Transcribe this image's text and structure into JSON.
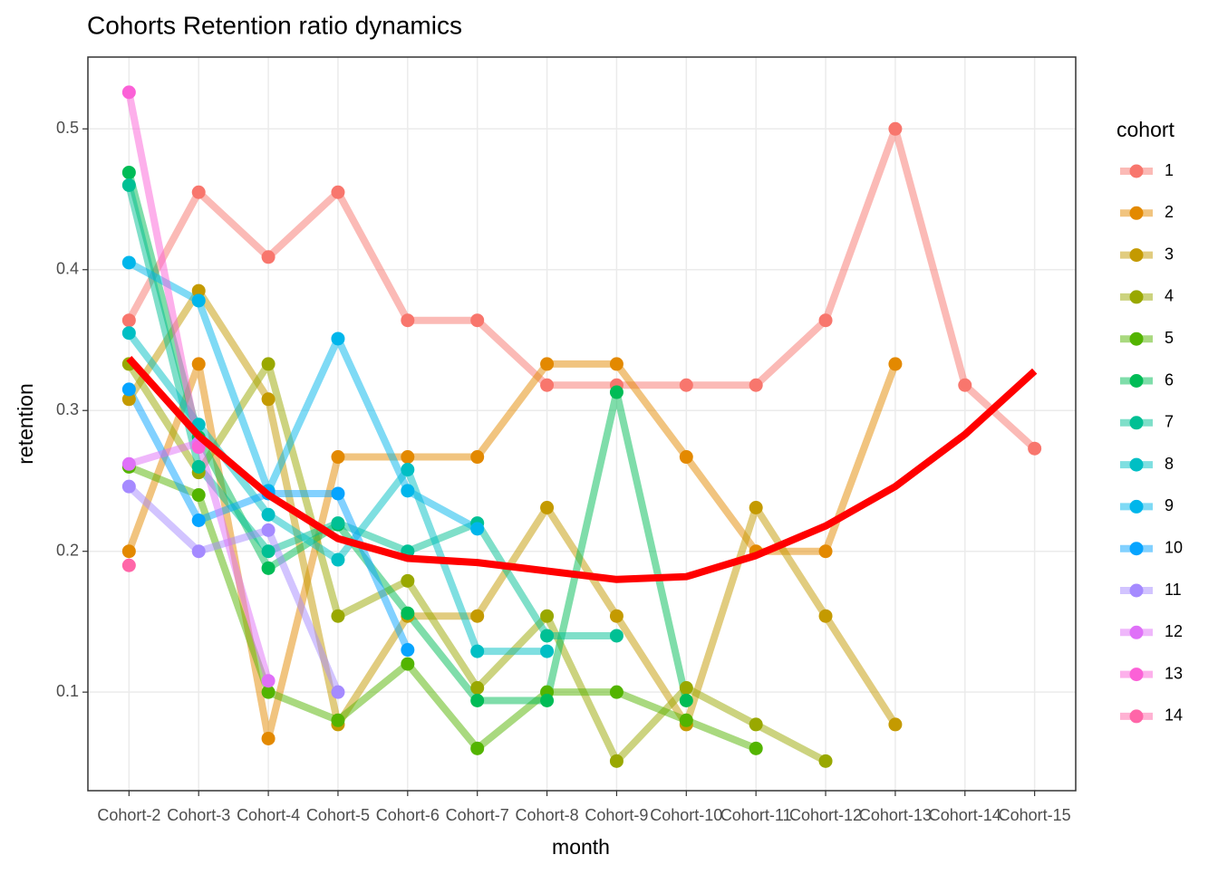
{
  "chart_data": {
    "type": "line",
    "title": "Cohorts Retention ratio dynamics",
    "x_label": "month",
    "y_label": "retention",
    "legend_title": "cohort",
    "categories": [
      "Cohort-2",
      "Cohort-3",
      "Cohort-4",
      "Cohort-5",
      "Cohort-6",
      "Cohort-7",
      "Cohort-8",
      "Cohort-9",
      "Cohort-10",
      "Cohort-11",
      "Cohort-12",
      "Cohort-13",
      "Cohort-14",
      "Cohort-15"
    ],
    "ylim": [
      0.03,
      0.551
    ],
    "yticks": [
      0.1,
      0.2,
      0.3,
      0.4,
      0.5
    ],
    "grid": true,
    "legend": "right",
    "series": [
      {
        "name": "1",
        "color": "#F8766D",
        "values": [
          0.364,
          0.455,
          0.409,
          0.455,
          0.364,
          0.364,
          0.318,
          0.318,
          0.318,
          0.318,
          0.364,
          0.5,
          0.318,
          0.273
        ]
      },
      {
        "name": "2",
        "color": "#E38900",
        "values": [
          0.2,
          0.333,
          0.067,
          0.267,
          0.267,
          0.267,
          0.333,
          0.333,
          0.267,
          0.2,
          0.2,
          0.333,
          null,
          null
        ]
      },
      {
        "name": "3",
        "color": "#C49A00",
        "values": [
          0.308,
          0.385,
          0.308,
          0.077,
          0.154,
          0.154,
          0.231,
          0.154,
          0.077,
          0.231,
          0.154,
          0.077,
          null,
          null
        ]
      },
      {
        "name": "4",
        "color": "#99A800",
        "values": [
          0.333,
          0.256,
          0.333,
          0.154,
          0.179,
          0.103,
          0.154,
          0.051,
          0.103,
          0.077,
          0.051,
          null,
          null,
          null
        ]
      },
      {
        "name": "5",
        "color": "#53B400",
        "values": [
          0.26,
          0.24,
          0.1,
          0.08,
          0.12,
          0.06,
          0.1,
          0.1,
          0.08,
          0.06,
          null,
          null,
          null,
          null
        ]
      },
      {
        "name": "6",
        "color": "#00BC56",
        "values": [
          0.469,
          0.281,
          0.188,
          0.219,
          0.156,
          0.094,
          0.094,
          0.313,
          0.094,
          null,
          null,
          null,
          null,
          null
        ]
      },
      {
        "name": "7",
        "color": "#00C094",
        "values": [
          0.46,
          0.26,
          0.2,
          0.22,
          0.2,
          0.22,
          0.14,
          0.14,
          null,
          null,
          null,
          null,
          null,
          null
        ]
      },
      {
        "name": "8",
        "color": "#00BFC4",
        "values": [
          0.355,
          0.29,
          0.226,
          0.194,
          0.258,
          0.129,
          0.129,
          null,
          null,
          null,
          null,
          null,
          null,
          null
        ]
      },
      {
        "name": "9",
        "color": "#00B6EB",
        "values": [
          0.405,
          0.378,
          0.243,
          0.351,
          0.243,
          0.216,
          null,
          null,
          null,
          null,
          null,
          null,
          null,
          null
        ]
      },
      {
        "name": "10",
        "color": "#06A4FF",
        "values": [
          0.315,
          0.222,
          0.241,
          0.241,
          0.13,
          null,
          null,
          null,
          null,
          null,
          null,
          null,
          null,
          null
        ]
      },
      {
        "name": "11",
        "color": "#A58AFF",
        "values": [
          0.246,
          0.2,
          0.215,
          0.1,
          null,
          null,
          null,
          null,
          null,
          null,
          null,
          null,
          null,
          null
        ]
      },
      {
        "name": "12",
        "color": "#DF70F8",
        "values": [
          0.262,
          0.277,
          0.108,
          null,
          null,
          null,
          null,
          null,
          null,
          null,
          null,
          null,
          null,
          null
        ]
      },
      {
        "name": "13",
        "color": "#FB61D7",
        "values": [
          0.526,
          0.274,
          null,
          null,
          null,
          null,
          null,
          null,
          null,
          null,
          null,
          null,
          null,
          null
        ]
      },
      {
        "name": "14",
        "color": "#FF66A8",
        "values": [
          0.19,
          null,
          null,
          null,
          null,
          null,
          null,
          null,
          null,
          null,
          null,
          null,
          null,
          null
        ]
      }
    ],
    "smooth": {
      "color": "#FF0000",
      "values": [
        0.337,
        0.282,
        0.24,
        0.209,
        0.195,
        0.192,
        0.186,
        0.18,
        0.182,
        0.197,
        0.218,
        0.246,
        0.283,
        0.328
      ]
    }
  }
}
